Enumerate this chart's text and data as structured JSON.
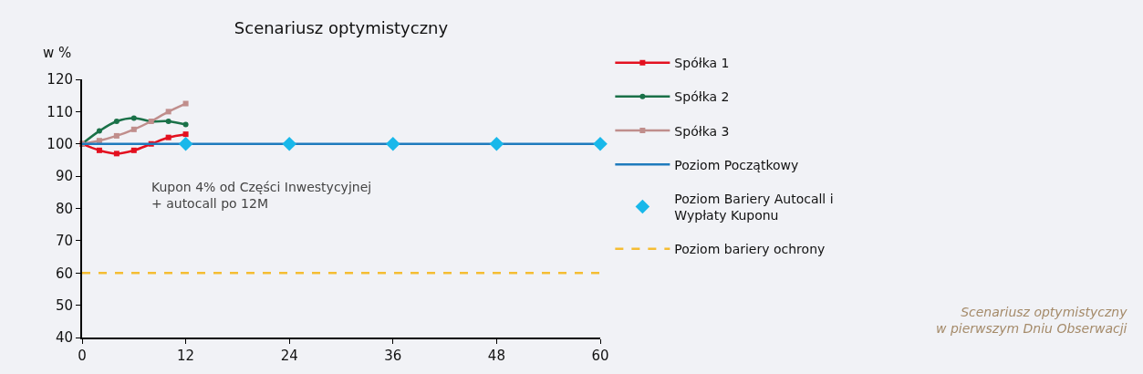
{
  "chart_data": {
    "type": "line",
    "title": "Scenariusz optymistyczny",
    "ylabel": "w %",
    "xlim": [
      0,
      60
    ],
    "xticks": [
      0,
      12,
      24,
      36,
      48,
      60
    ],
    "ylim": [
      40,
      120
    ],
    "yticks": [
      40,
      50,
      60,
      70,
      80,
      90,
      100,
      110,
      120
    ],
    "grid": false,
    "legend": "right",
    "series": [
      {
        "name": "Spółka 1",
        "color": "#e3101f",
        "marker": "square",
        "x": [
          0,
          2,
          4,
          6,
          8,
          10,
          12
        ],
        "values": [
          100,
          98,
          97,
          98,
          100,
          102,
          103
        ]
      },
      {
        "name": "Spółka 2",
        "color": "#1a7148",
        "marker": "circle",
        "x": [
          0,
          2,
          4,
          6,
          8,
          10,
          12
        ],
        "values": [
          100,
          104,
          107,
          108,
          107,
          107,
          106
        ]
      },
      {
        "name": "Spółka 3",
        "color": "#c08e8c",
        "marker": "square",
        "x": [
          0,
          2,
          4,
          6,
          8,
          10,
          12
        ],
        "values": [
          100,
          101,
          102.5,
          104.5,
          107,
          110,
          112.5
        ]
      },
      {
        "name": "Poziom Początkowy",
        "color": "#1f7bbd",
        "marker": "none",
        "x": [
          0,
          60
        ],
        "values": [
          100,
          100
        ]
      },
      {
        "name": "Poziom Bariery Autocall i Wypłaty Kuponu",
        "type": "scatter",
        "color": "#19b8ea",
        "marker": "diamond",
        "x": [
          12,
          24,
          36,
          48,
          60
        ],
        "values": [
          100,
          100,
          100,
          100,
          100
        ]
      },
      {
        "name": "Poziom bariery ochrony",
        "color": "#f5bd33",
        "marker": "none",
        "line_style": "dashed",
        "x": [
          0,
          60
        ],
        "values": [
          60,
          60
        ]
      }
    ],
    "annotations": [
      "Kupon 4% od Części Inwestycyjnej\n+ autocall po 12M",
      "Scenariusz optymistyczny\nw pierwszym Dniu Obserwacji"
    ]
  }
}
